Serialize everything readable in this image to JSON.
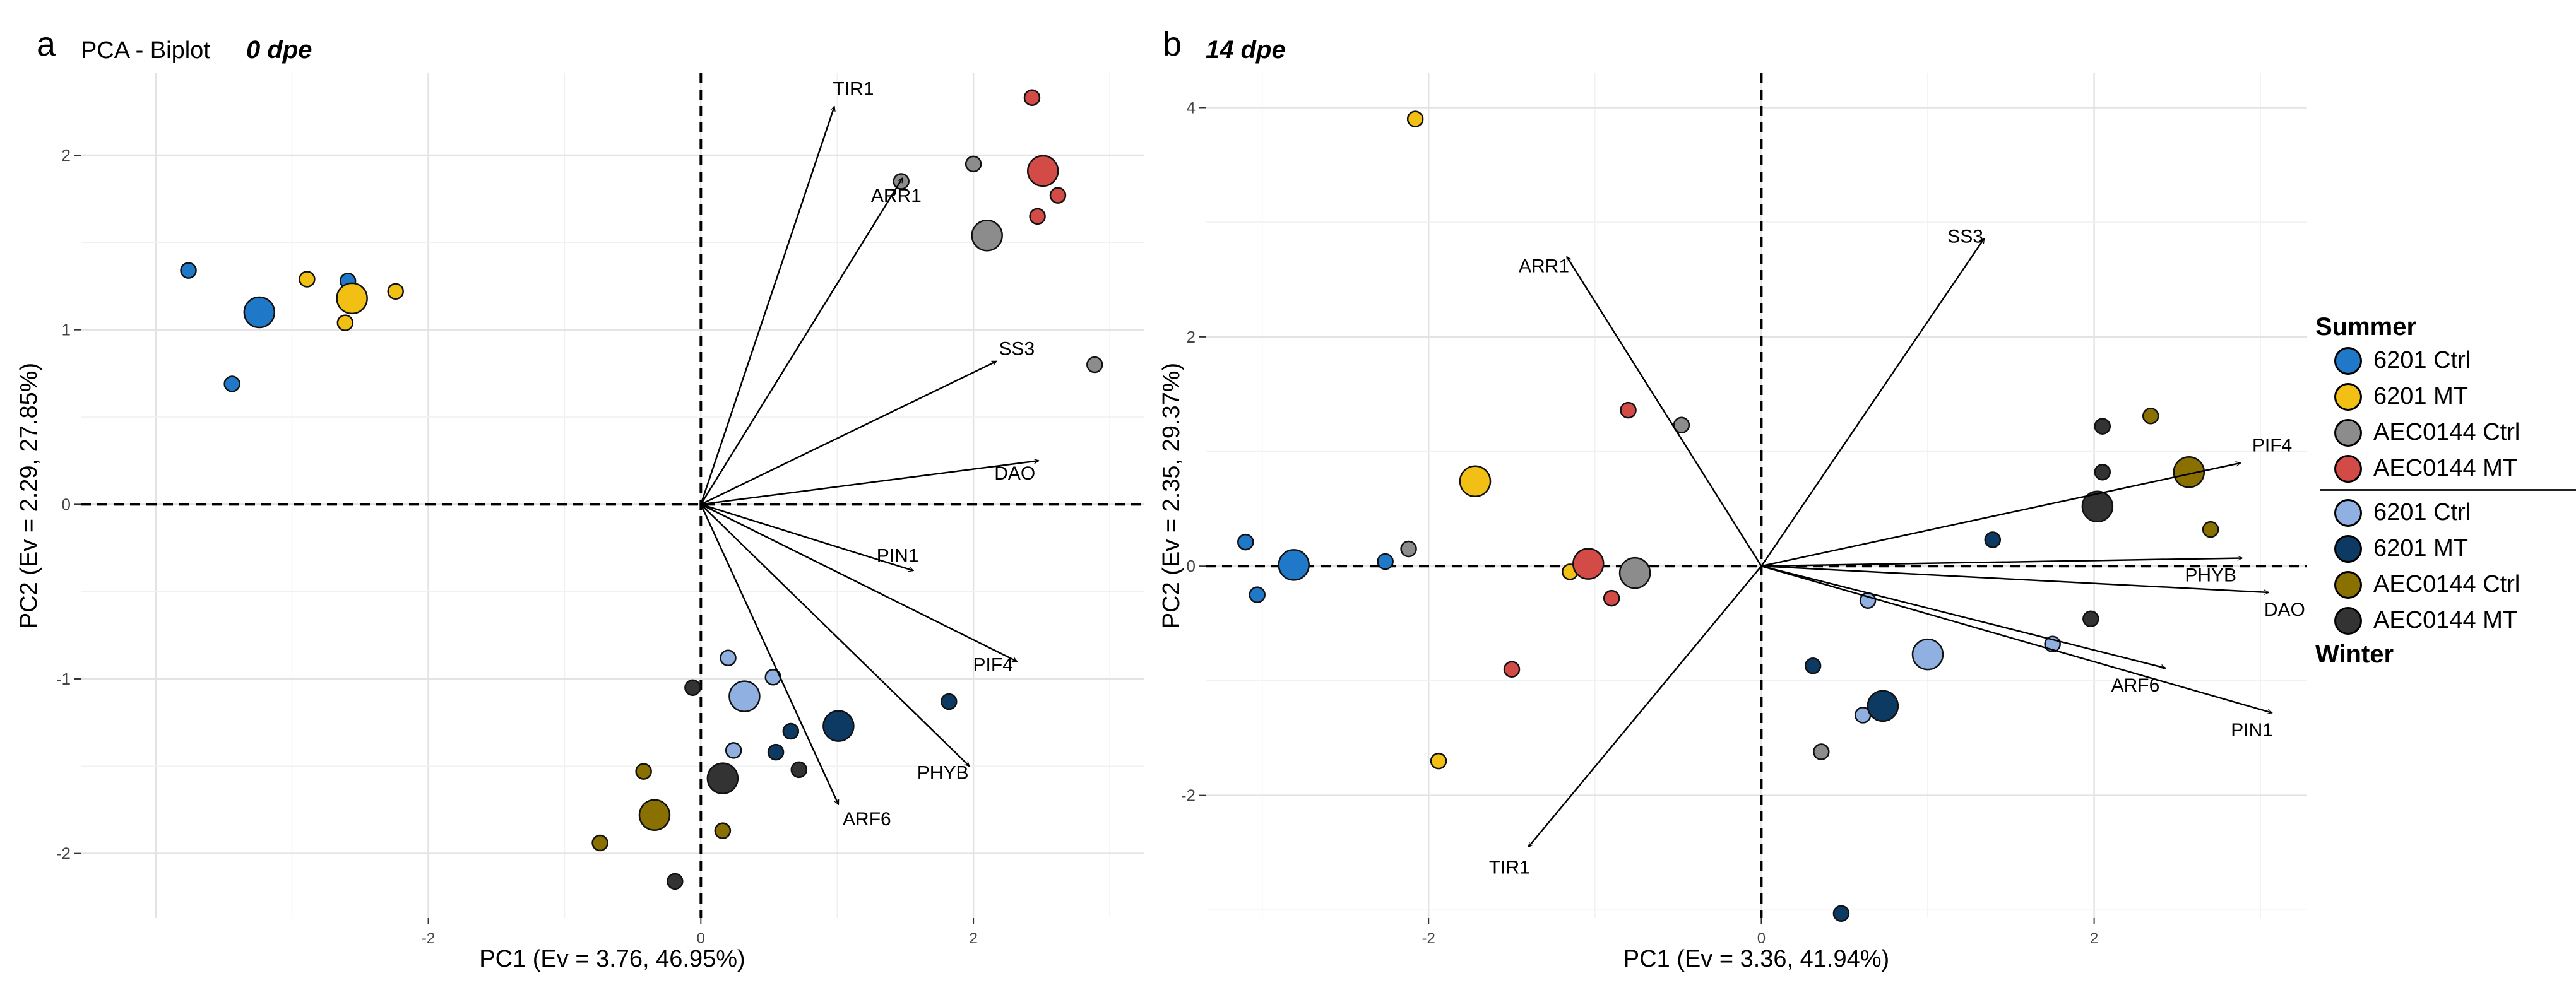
{
  "figure": {
    "panel_a_letter": "a",
    "panel_a_title": "PCA - Biplot",
    "panel_a_subtitle": "0 dpe",
    "panel_b_letter": "b",
    "panel_b_subtitle": "14 dpe"
  },
  "legend": {
    "summer_title": "Summer",
    "winter_title": "Winter",
    "summer_items": [
      {
        "label": "6201 Ctrl",
        "color": "#1f78c8"
      },
      {
        "label": "6201 MT",
        "color": "#f2c014"
      },
      {
        "label": "AEC0144 Ctrl",
        "color": "#8c8c8c"
      },
      {
        "label": "AEC0144 MT",
        "color": "#d24b47"
      }
    ],
    "winter_items": [
      {
        "label": "6201 Ctrl",
        "color": "#8fb0e0"
      },
      {
        "label": "6201 MT",
        "color": "#0d3a63"
      },
      {
        "label": "AEC0144 Ctrl",
        "color": "#8a7000"
      },
      {
        "label": "AEC0144 MT",
        "color": "#333333"
      }
    ]
  },
  "chart_data": [
    {
      "type": "scatter",
      "title": "PCA - Biplot",
      "subtitle": "0 dpe",
      "xlabel": "PC1 (Ev = 3.76, 46.95%)",
      "ylabel": "PC2 (Ev = 2.29, 27.85%)",
      "xlim": [
        -4.55,
        3.25
      ],
      "ylim": [
        -2.37,
        2.47
      ],
      "xticks": [
        {
          "v": -2,
          "label": "-2"
        },
        {
          "v": 0,
          "label": "0"
        },
        {
          "v": 2,
          "label": "2"
        }
      ],
      "yticks": [
        {
          "v": -2,
          "label": "-2"
        },
        {
          "v": -1,
          "label": "-1"
        },
        {
          "v": 0,
          "label": "0"
        },
        {
          "v": 1,
          "label": "1"
        },
        {
          "v": 2,
          "label": "2"
        }
      ],
      "grid": true,
      "loadings": [
        {
          "name": "TIR1",
          "x": 0.98,
          "y": 2.28
        },
        {
          "name": "ARR1",
          "x": 1.48,
          "y": 1.87
        },
        {
          "name": "SS3",
          "x": 2.17,
          "y": 0.82
        },
        {
          "name": "DAO",
          "x": 2.48,
          "y": 0.25
        },
        {
          "name": "PIN1",
          "x": 1.56,
          "y": -0.38
        },
        {
          "name": "PIF4",
          "x": 2.32,
          "y": -0.9
        },
        {
          "name": "PHYB",
          "x": 1.97,
          "y": -1.5
        },
        {
          "name": "ARF6",
          "x": 1.01,
          "y": -1.72
        }
      ],
      "points": [
        {
          "x": -3.76,
          "y": 1.34,
          "c": "#1f78c8",
          "s": "s"
        },
        {
          "x": -3.44,
          "y": 0.69,
          "c": "#1f78c8",
          "s": "s"
        },
        {
          "x": -3.24,
          "y": 1.1,
          "c": "#1f78c8",
          "s": "l"
        },
        {
          "x": -2.59,
          "y": 1.28,
          "c": "#1f78c8",
          "s": "s"
        },
        {
          "x": -2.89,
          "y": 1.29,
          "c": "#f2c014",
          "s": "s"
        },
        {
          "x": -2.61,
          "y": 1.04,
          "c": "#f2c014",
          "s": "s"
        },
        {
          "x": -2.24,
          "y": 1.22,
          "c": "#f2c014",
          "s": "s"
        },
        {
          "x": -2.56,
          "y": 1.18,
          "c": "#f2c014",
          "s": "l"
        },
        {
          "x": 1.47,
          "y": 1.85,
          "c": "#8c8c8c",
          "s": "s"
        },
        {
          "x": 2.0,
          "y": 1.95,
          "c": "#8c8c8c",
          "s": "s"
        },
        {
          "x": 2.1,
          "y": 1.54,
          "c": "#8c8c8c",
          "s": "l"
        },
        {
          "x": 2.89,
          "y": 0.8,
          "c": "#8c8c8c",
          "s": "s"
        },
        {
          "x": 2.43,
          "y": 2.33,
          "c": "#d24b47",
          "s": "s"
        },
        {
          "x": 2.51,
          "y": 1.91,
          "c": "#d24b47",
          "s": "l"
        },
        {
          "x": 2.62,
          "y": 1.77,
          "c": "#d24b47",
          "s": "s"
        },
        {
          "x": 2.47,
          "y": 1.65,
          "c": "#d24b47",
          "s": "s"
        },
        {
          "x": 0.2,
          "y": -0.88,
          "c": "#8fb0e0",
          "s": "s"
        },
        {
          "x": 0.53,
          "y": -0.99,
          "c": "#8fb0e0",
          "s": "s"
        },
        {
          "x": 0.32,
          "y": -1.1,
          "c": "#8fb0e0",
          "s": "l"
        },
        {
          "x": 0.24,
          "y": -1.41,
          "c": "#8fb0e0",
          "s": "s"
        },
        {
          "x": 0.66,
          "y": -1.3,
          "c": "#0d3a63",
          "s": "s"
        },
        {
          "x": 0.55,
          "y": -1.42,
          "c": "#0d3a63",
          "s": "s"
        },
        {
          "x": 1.01,
          "y": -1.27,
          "c": "#0d3a63",
          "s": "l"
        },
        {
          "x": 1.82,
          "y": -1.13,
          "c": "#0d3a63",
          "s": "s"
        },
        {
          "x": -0.42,
          "y": -1.53,
          "c": "#8a7000",
          "s": "s"
        },
        {
          "x": -0.34,
          "y": -1.78,
          "c": "#8a7000",
          "s": "l"
        },
        {
          "x": -0.74,
          "y": -1.94,
          "c": "#8a7000",
          "s": "s"
        },
        {
          "x": 0.16,
          "y": -1.87,
          "c": "#8a7000",
          "s": "s"
        },
        {
          "x": -0.06,
          "y": -1.05,
          "c": "#333333",
          "s": "s"
        },
        {
          "x": 0.72,
          "y": -1.52,
          "c": "#333333",
          "s": "s"
        },
        {
          "x": 0.16,
          "y": -1.57,
          "c": "#333333",
          "s": "l"
        },
        {
          "x": -0.19,
          "y": -2.16,
          "c": "#333333",
          "s": "s"
        }
      ]
    },
    {
      "type": "scatter",
      "subtitle": "14 dpe",
      "xlabel": "PC1 (Ev = 3.36, 41.94%)",
      "ylabel": "PC2 (Ev = 2.35, 29.37%)",
      "xlim": [
        -3.34,
        3.28
      ],
      "ylim": [
        -3.07,
        4.3
      ],
      "xticks": [
        {
          "v": -2,
          "label": "-2"
        },
        {
          "v": 0,
          "label": "0"
        },
        {
          "v": 2,
          "label": "2"
        }
      ],
      "yticks": [
        {
          "v": -2,
          "label": "-2"
        },
        {
          "v": 0,
          "label": "0"
        },
        {
          "v": 2,
          "label": "2"
        },
        {
          "v": 4,
          "label": "4"
        }
      ],
      "grid": true,
      "loadings": [
        {
          "name": "SS3",
          "x": 1.34,
          "y": 2.86
        },
        {
          "name": "ARR1",
          "x": -1.17,
          "y": 2.7
        },
        {
          "name": "PIF4",
          "x": 2.88,
          "y": 0.9
        },
        {
          "name": "PHYB",
          "x": 2.89,
          "y": 0.07
        },
        {
          "name": "DAO",
          "x": 3.05,
          "y": -0.23
        },
        {
          "name": "ARF6",
          "x": 2.43,
          "y": -0.89
        },
        {
          "name": "PIN1",
          "x": 3.07,
          "y": -1.28
        },
        {
          "name": "TIR1",
          "x": -1.4,
          "y": -2.45
        }
      ],
      "points": [
        {
          "x": -3.1,
          "y": 0.21,
          "c": "#1f78c8",
          "s": "s"
        },
        {
          "x": -3.03,
          "y": -0.25,
          "c": "#1f78c8",
          "s": "s"
        },
        {
          "x": -2.81,
          "y": 0.01,
          "c": "#1f78c8",
          "s": "l"
        },
        {
          "x": -2.26,
          "y": 0.04,
          "c": "#1f78c8",
          "s": "s"
        },
        {
          "x": -2.08,
          "y": 3.9,
          "c": "#f2c014",
          "s": "s"
        },
        {
          "x": -1.72,
          "y": 0.74,
          "c": "#f2c014",
          "s": "l"
        },
        {
          "x": -1.15,
          "y": -0.05,
          "c": "#f2c014",
          "s": "s"
        },
        {
          "x": -1.94,
          "y": -1.7,
          "c": "#f2c014",
          "s": "s"
        },
        {
          "x": -2.12,
          "y": 0.15,
          "c": "#8c8c8c",
          "s": "s"
        },
        {
          "x": -0.48,
          "y": 1.23,
          "c": "#8c8c8c",
          "s": "s"
        },
        {
          "x": -0.76,
          "y": -0.06,
          "c": "#8c8c8c",
          "s": "l"
        },
        {
          "x": -0.8,
          "y": 1.36,
          "c": "#d24b47",
          "s": "s"
        },
        {
          "x": -1.04,
          "y": 0.02,
          "c": "#d24b47",
          "s": "l"
        },
        {
          "x": -0.9,
          "y": -0.28,
          "c": "#d24b47",
          "s": "s"
        },
        {
          "x": -1.5,
          "y": -0.9,
          "c": "#d24b47",
          "s": "s"
        },
        {
          "x": 0.64,
          "y": -0.3,
          "c": "#8fb0e0",
          "s": "s"
        },
        {
          "x": 1.0,
          "y": -0.77,
          "c": "#8fb0e0",
          "s": "l"
        },
        {
          "x": 1.75,
          "y": -0.68,
          "c": "#8fb0e0",
          "s": "s"
        },
        {
          "x": 0.61,
          "y": -1.3,
          "c": "#8fb0e0",
          "s": "s"
        },
        {
          "x": 0.36,
          "y": -1.62,
          "c": "#8c8c8c",
          "s": "s"
        },
        {
          "x": 1.39,
          "y": 0.23,
          "c": "#0d3a63",
          "s": "s"
        },
        {
          "x": 0.31,
          "y": -0.87,
          "c": "#0d3a63",
          "s": "s"
        },
        {
          "x": 0.73,
          "y": -1.22,
          "c": "#0d3a63",
          "s": "l"
        },
        {
          "x": 0.48,
          "y": -3.03,
          "c": "#0d3a63",
          "s": "s"
        },
        {
          "x": 2.34,
          "y": 1.31,
          "c": "#8a7000",
          "s": "s"
        },
        {
          "x": 2.57,
          "y": 0.82,
          "c": "#8a7000",
          "s": "l"
        },
        {
          "x": 2.7,
          "y": 0.32,
          "c": "#8a7000",
          "s": "s"
        },
        {
          "x": 2.05,
          "y": 1.22,
          "c": "#333333",
          "s": "s"
        },
        {
          "x": 2.05,
          "y": 0.82,
          "c": "#333333",
          "s": "s"
        },
        {
          "x": 2.02,
          "y": 0.52,
          "c": "#333333",
          "s": "l"
        },
        {
          "x": 1.98,
          "y": -0.46,
          "c": "#333333",
          "s": "s"
        }
      ]
    }
  ]
}
